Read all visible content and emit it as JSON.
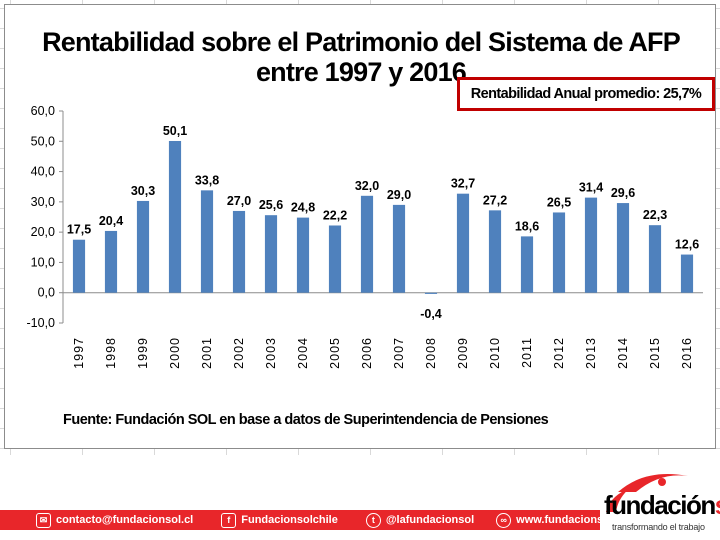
{
  "chart_data": {
    "type": "bar",
    "title_line_1": "Rentabilidad sobre el Patrimonio del Sistema de AFP",
    "title_line_2": "entre 1997 y 2016",
    "categories": [
      "1997",
      "1998",
      "1999",
      "2000",
      "2001",
      "2002",
      "2003",
      "2004",
      "2005",
      "2006",
      "2007",
      "2008",
      "2009",
      "2010",
      "2011",
      "2012",
      "2013",
      "2014",
      "2015",
      "2016"
    ],
    "values": [
      17.5,
      20.4,
      30.3,
      50.1,
      33.8,
      27.0,
      25.6,
      24.8,
      22.2,
      32.0,
      29.0,
      -0.4,
      32.7,
      27.2,
      18.6,
      26.5,
      31.4,
      29.6,
      22.3,
      12.6
    ],
    "value_labels": [
      "17,5",
      "20,4",
      "30,3",
      "50,1",
      "33,8",
      "27,0",
      "25,6",
      "24,8",
      "22,2",
      "32,0",
      "29,0",
      "-0,4",
      "32,7",
      "27,2",
      "18,6",
      "26,5",
      "31,4",
      "29,6",
      "22,3",
      "12,6"
    ],
    "y_ticks": [
      -10,
      0,
      10,
      20,
      30,
      40,
      50,
      60
    ],
    "y_tick_labels": [
      "-10,0",
      "0,0",
      "10,0",
      "20,0",
      "30,0",
      "40,0",
      "50,0",
      "60,0"
    ],
    "ylim": [
      -10,
      60
    ],
    "xlabel": "",
    "ylabel": "",
    "bar_color": "#4f81bd",
    "gridlines": false,
    "annotation": "Rentabilidad Anual promedio: 25,7%",
    "source": "Fuente: Fundación SOL en base a datos de Superintendencia de Pensiones"
  },
  "footer": {
    "email": "contacto@fundacionsol.cl",
    "facebook": "Fundacionsolchile",
    "twitter": "@lafundacionsol",
    "website": "www.fundacionsol.cl",
    "bar_color": "#e8262a"
  },
  "logo": {
    "word_main": "fundación",
    "word_accent": "sol",
    "tagline": "transformando el trabajo",
    "accent_color": "#e8262a"
  }
}
